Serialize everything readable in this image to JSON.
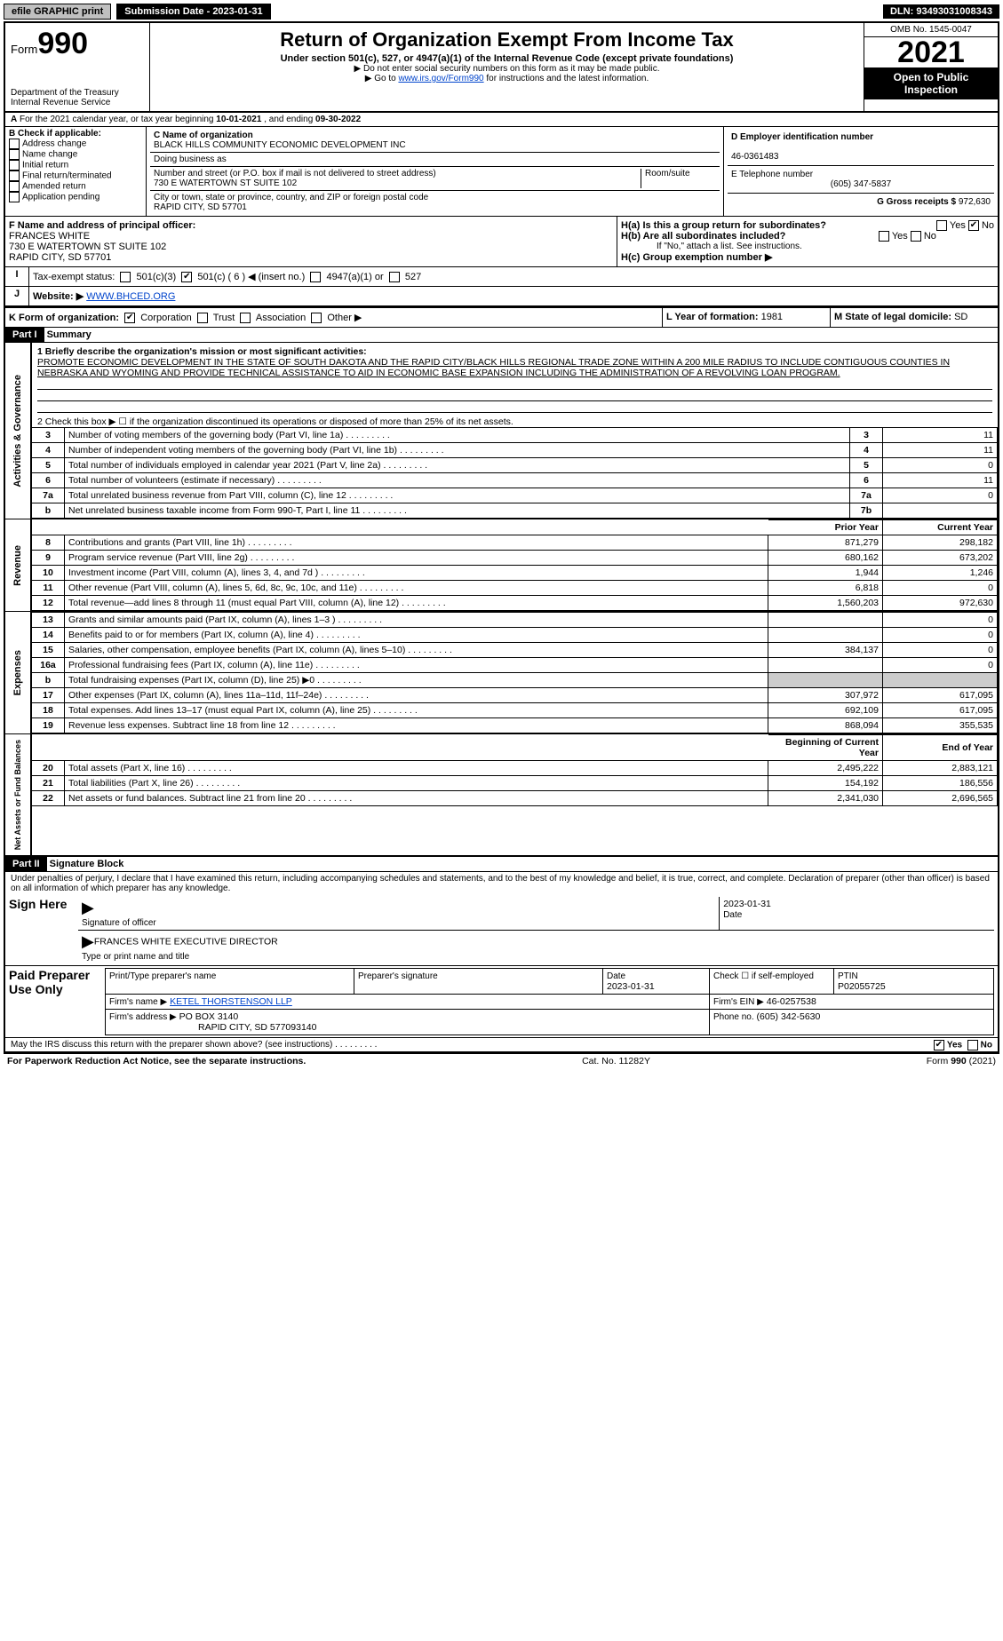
{
  "topbar": {
    "efile_label": "efile GRAPHIC print",
    "submission_label": "Submission Date - 2023-01-31",
    "dln": "DLN: 93493031008343"
  },
  "header": {
    "form_word": "Form",
    "form_number": "990",
    "title": "Return of Organization Exempt From Income Tax",
    "subtitle": "Under section 501(c), 527, or 4947(a)(1) of the Internal Revenue Code (except private foundations)",
    "note1": "▶ Do not enter social security numbers on this form as it may be made public.",
    "note2_pre": "▶ Go to ",
    "note2_link": "www.irs.gov/Form990",
    "note2_post": " for instructions and the latest information.",
    "dept": "Department of the Treasury",
    "irs": "Internal Revenue Service",
    "omb": "OMB No. 1545-0047",
    "year": "2021",
    "open": "Open to Public Inspection"
  },
  "line_a": {
    "text_pre": "For the 2021 calendar year, or tax year beginning ",
    "begin": "10-01-2021",
    "mid": " , and ending ",
    "end": "09-30-2022"
  },
  "box_b": {
    "hdr": "B Check if applicable:",
    "items": [
      "Address change",
      "Name change",
      "Initial return",
      "Final return/terminated",
      "Amended return",
      "Application pending"
    ]
  },
  "box_c": {
    "label_name": "C Name of organization",
    "name": "BLACK HILLS COMMUNITY ECONOMIC DEVELOPMENT INC",
    "label_dba": "Doing business as",
    "label_street": "Number and street (or P.O. box if mail is not delivered to street address)",
    "room_label": "Room/suite",
    "street": "730 E WATERTOWN ST SUITE 102",
    "label_city": "City or town, state or province, country, and ZIP or foreign postal code",
    "city": "RAPID CITY, SD  57701"
  },
  "box_d": {
    "label": "D Employer identification number",
    "value": "46-0361483"
  },
  "box_e": {
    "label": "E Telephone number",
    "value": "(605) 347-5837"
  },
  "box_g": {
    "label": "G Gross receipts $",
    "value": "972,630"
  },
  "box_f": {
    "label": "F Name and address of principal officer:",
    "name": "FRANCES WHITE",
    "street": "730 E WATERTOWN ST SUITE 102",
    "city": "RAPID CITY, SD  57701"
  },
  "box_h": {
    "a_label": "H(a)  Is this a group return for subordinates?",
    "b_label": "H(b)  Are all subordinates included?",
    "note": "If \"No,\" attach a list. See instructions.",
    "c_label": "H(c)  Group exemption number ▶",
    "yes": "Yes",
    "no": "No"
  },
  "box_i": {
    "label": "Tax-exempt status:",
    "opts": [
      "501(c)(3)",
      "501(c) ( 6 ) ◀ (insert no.)",
      "4947(a)(1) or",
      "527"
    ]
  },
  "box_j": {
    "label": "Website: ▶",
    "value": "WWW.BHCED.ORG"
  },
  "box_k": {
    "label": "K Form of organization:",
    "opts": [
      "Corporation",
      "Trust",
      "Association",
      "Other ▶"
    ]
  },
  "box_l": {
    "label": "L Year of formation:",
    "value": "1981"
  },
  "box_m": {
    "label": "M State of legal domicile:",
    "value": "SD"
  },
  "part1": {
    "hdr": "Part I",
    "title": "Summary",
    "line1_label": "1  Briefly describe the organization's mission or most significant activities:",
    "mission": "PROMOTE ECONOMIC DEVELOPMENT IN THE STATE OF SOUTH DAKOTA AND THE RAPID CITY/BLACK HILLS REGIONAL TRADE ZONE WITHIN A 200 MILE RADIUS TO INCLUDE CONTIGUOUS COUNTIES IN NEBRASKA AND WYOMING AND PROVIDE TECHNICAL ASSISTANCE TO AID IN ECONOMIC BASE EXPANSION INCLUDING THE ADMINISTRATION OF A REVOLVING LOAN PROGRAM.",
    "line2": "2   Check this box ▶ ☐  if the organization discontinued its operations or disposed of more than 25% of its net assets.",
    "gov_rows": [
      {
        "n": "3",
        "d": "Number of voting members of the governing body (Part VI, line 1a)",
        "box": "3",
        "v": "11"
      },
      {
        "n": "4",
        "d": "Number of independent voting members of the governing body (Part VI, line 1b)",
        "box": "4",
        "v": "11"
      },
      {
        "n": "5",
        "d": "Total number of individuals employed in calendar year 2021 (Part V, line 2a)",
        "box": "5",
        "v": "0"
      },
      {
        "n": "6",
        "d": "Total number of volunteers (estimate if necessary)",
        "box": "6",
        "v": "11"
      },
      {
        "n": "7a",
        "d": "Total unrelated business revenue from Part VIII, column (C), line 12",
        "box": "7a",
        "v": "0"
      },
      {
        "n": "b",
        "d": "Net unrelated business taxable income from Form 990-T, Part I, line 11",
        "box": "7b",
        "v": ""
      }
    ],
    "col_prior": "Prior Year",
    "col_current": "Current Year",
    "rev_rows": [
      {
        "n": "8",
        "d": "Contributions and grants (Part VIII, line 1h)",
        "p": "871,279",
        "c": "298,182"
      },
      {
        "n": "9",
        "d": "Program service revenue (Part VIII, line 2g)",
        "p": "680,162",
        "c": "673,202"
      },
      {
        "n": "10",
        "d": "Investment income (Part VIII, column (A), lines 3, 4, and 7d )",
        "p": "1,944",
        "c": "1,246"
      },
      {
        "n": "11",
        "d": "Other revenue (Part VIII, column (A), lines 5, 6d, 8c, 9c, 10c, and 11e)",
        "p": "6,818",
        "c": "0"
      },
      {
        "n": "12",
        "d": "Total revenue—add lines 8 through 11 (must equal Part VIII, column (A), line 12)",
        "p": "1,560,203",
        "c": "972,630"
      }
    ],
    "exp_rows": [
      {
        "n": "13",
        "d": "Grants and similar amounts paid (Part IX, column (A), lines 1–3 )",
        "p": "",
        "c": "0"
      },
      {
        "n": "14",
        "d": "Benefits paid to or for members (Part IX, column (A), line 4)",
        "p": "",
        "c": "0"
      },
      {
        "n": "15",
        "d": "Salaries, other compensation, employee benefits (Part IX, column (A), lines 5–10)",
        "p": "384,137",
        "c": "0"
      },
      {
        "n": "16a",
        "d": "Professional fundraising fees (Part IX, column (A), line 11e)",
        "p": "",
        "c": "0"
      },
      {
        "n": "b",
        "d": "Total fundraising expenses (Part IX, column (D), line 25) ▶0",
        "p": "—shade—",
        "c": "—shade—"
      },
      {
        "n": "17",
        "d": "Other expenses (Part IX, column (A), lines 11a–11d, 11f–24e)",
        "p": "307,972",
        "c": "617,095"
      },
      {
        "n": "18",
        "d": "Total expenses. Add lines 13–17 (must equal Part IX, column (A), line 25)",
        "p": "692,109",
        "c": "617,095"
      },
      {
        "n": "19",
        "d": "Revenue less expenses. Subtract line 18 from line 12",
        "p": "868,094",
        "c": "355,535"
      }
    ],
    "col_begin": "Beginning of Current Year",
    "col_end": "End of Year",
    "net_rows": [
      {
        "n": "20",
        "d": "Total assets (Part X, line 16)",
        "p": "2,495,222",
        "c": "2,883,121"
      },
      {
        "n": "21",
        "d": "Total liabilities (Part X, line 26)",
        "p": "154,192",
        "c": "186,556"
      },
      {
        "n": "22",
        "d": "Net assets or fund balances. Subtract line 21 from line 20",
        "p": "2,341,030",
        "c": "2,696,565"
      }
    ],
    "vlabels": {
      "gov": "Activities & Governance",
      "rev": "Revenue",
      "exp": "Expenses",
      "net": "Net Assets or Fund Balances"
    }
  },
  "part2": {
    "hdr": "Part II",
    "title": "Signature Block",
    "perjury": "Under penalties of perjury, I declare that I have examined this return, including accompanying schedules and statements, and to the best of my knowledge and belief, it is true, correct, and complete. Declaration of preparer (other than officer) is based on all information of which preparer has any knowledge.",
    "sign_here": "Sign Here",
    "sig_label": "Signature of officer",
    "date_label": "Date",
    "date": "2023-01-31",
    "name_title": "FRANCES WHITE  EXECUTIVE DIRECTOR",
    "name_label": "Type or print name and title",
    "paid": "Paid Preparer Use Only",
    "cols": {
      "p1": "Print/Type preparer's name",
      "p2": "Preparer's signature",
      "p3": "Date",
      "p4": "Check ☐ if self-employed",
      "p5": "PTIN"
    },
    "vals": {
      "date": "2023-01-31",
      "ptin": "P02055725",
      "firm_label": "Firm's name    ▶",
      "firm": "KETEL THORSTENSON LLP",
      "ein_label": "Firm's EIN ▶",
      "ein": "46-0257538",
      "addr_label": "Firm's address ▶",
      "addr": "PO BOX 3140",
      "addr2": "RAPID CITY, SD  577093140",
      "phone_label": "Phone no.",
      "phone": "(605) 342-5630"
    },
    "discuss": "May the IRS discuss this return with the preparer shown above? (see instructions)",
    "yes": "Yes",
    "no": "No"
  },
  "footer": {
    "paperwork": "For Paperwork Reduction Act Notice, see the separate instructions.",
    "cat": "Cat. No. 11282Y",
    "form": "Form 990 (2021)"
  }
}
